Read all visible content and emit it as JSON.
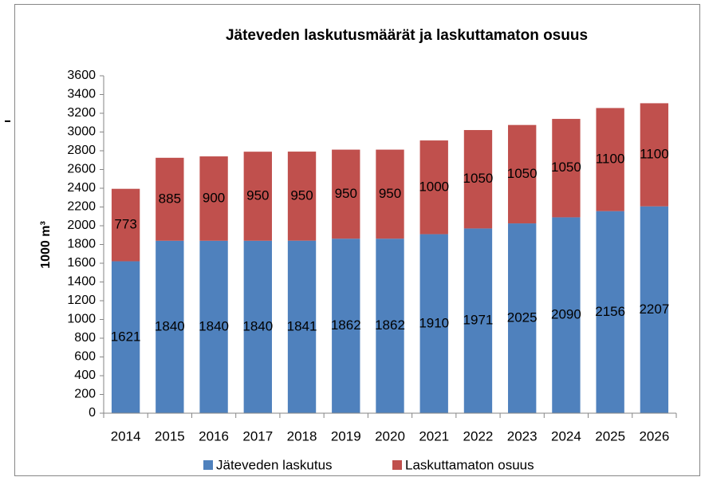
{
  "chart_data": {
    "type": "stacked_bar",
    "title": "Jäteveden laskutusmäärät ja laskuttamaton osuus",
    "y_label": "1000 m³",
    "categories": [
      "2014",
      "2015",
      "2016",
      "2017",
      "2018",
      "2019",
      "2020",
      "2021",
      "2022",
      "2023",
      "2024",
      "2025",
      "2026"
    ],
    "series": [
      {
        "name": "Jäteveden laskutus",
        "color": "#4f81bd",
        "values": [
          1621,
          1840,
          1840,
          1840,
          1841,
          1862,
          1862,
          1910,
          1971,
          2025,
          2090,
          2156,
          2207
        ]
      },
      {
        "name": "Laskuttamaton osuus",
        "color": "#c0504d",
        "values": [
          773,
          885,
          900,
          950,
          950,
          950,
          950,
          1000,
          1050,
          1050,
          1050,
          1100,
          1100
        ]
      }
    ],
    "ylim": [
      0,
      3600
    ],
    "yticks": [
      0,
      200,
      400,
      600,
      800,
      1000,
      1200,
      1400,
      1600,
      1800,
      2000,
      2200,
      2400,
      2600,
      2800,
      3000,
      3200,
      3400,
      3600
    ],
    "grid": false,
    "legend": "bottom"
  }
}
